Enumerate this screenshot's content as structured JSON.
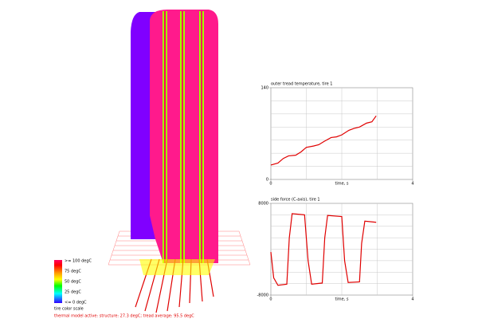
{
  "chart_data": [
    {
      "type": "line",
      "title": "outer tread temperature, tire 1",
      "xlabel": "time, s",
      "xlim": [
        0,
        4
      ],
      "xticks": [
        0,
        4
      ],
      "ylim": [
        0,
        140
      ],
      "yticks": [
        0,
        140
      ],
      "xgrid": [
        1,
        2,
        3
      ],
      "ygrid": [
        20,
        40,
        60,
        80,
        100,
        120
      ],
      "series": [
        {
          "color": "#e00000",
          "x": [
            0,
            0.2,
            0.35,
            0.5,
            0.7,
            0.85,
            1.0,
            1.2,
            1.35,
            1.5,
            1.7,
            1.85,
            2.0,
            2.2,
            2.35,
            2.5,
            2.7,
            2.85,
            2.97
          ],
          "values": [
            22,
            25,
            32,
            36,
            37,
            42,
            49,
            51,
            53,
            58,
            64,
            65,
            68,
            75,
            78,
            80,
            86,
            88,
            97
          ]
        }
      ]
    },
    {
      "type": "line",
      "title": "side force (C-axis), tire 1",
      "xlabel": "time, s",
      "xlim": [
        0,
        4
      ],
      "xticks": [
        0,
        4
      ],
      "ylim": [
        -8000,
        8000
      ],
      "yticks": [
        -8000,
        8000
      ],
      "xgrid": [
        1,
        2,
        3
      ],
      "ygrid": [
        -6000,
        -4000,
        -2000,
        0,
        2000,
        4000,
        6000
      ],
      "series": [
        {
          "color": "#e00000",
          "x": [
            0,
            0.08,
            0.2,
            0.45,
            0.52,
            0.6,
            0.95,
            1.05,
            1.15,
            1.45,
            1.52,
            1.6,
            2.0,
            2.08,
            2.18,
            2.5,
            2.56,
            2.65,
            2.97
          ],
          "values": [
            -500,
            -5000,
            -6300,
            -6100,
            2000,
            6200,
            6000,
            -2000,
            -6100,
            -5900,
            2000,
            5900,
            5700,
            -2000,
            -5800,
            -5700,
            1000,
            4900,
            4700
          ]
        }
      ]
    }
  ],
  "legend": {
    "labels": [
      ">= 100 degC",
      "75 degC",
      "50 degC",
      "25 degC",
      "<= 0 degC"
    ],
    "caption": "tire color scale"
  },
  "status": "thermal model active: structure: 27.3 degC; tread average: 95.5 degC"
}
